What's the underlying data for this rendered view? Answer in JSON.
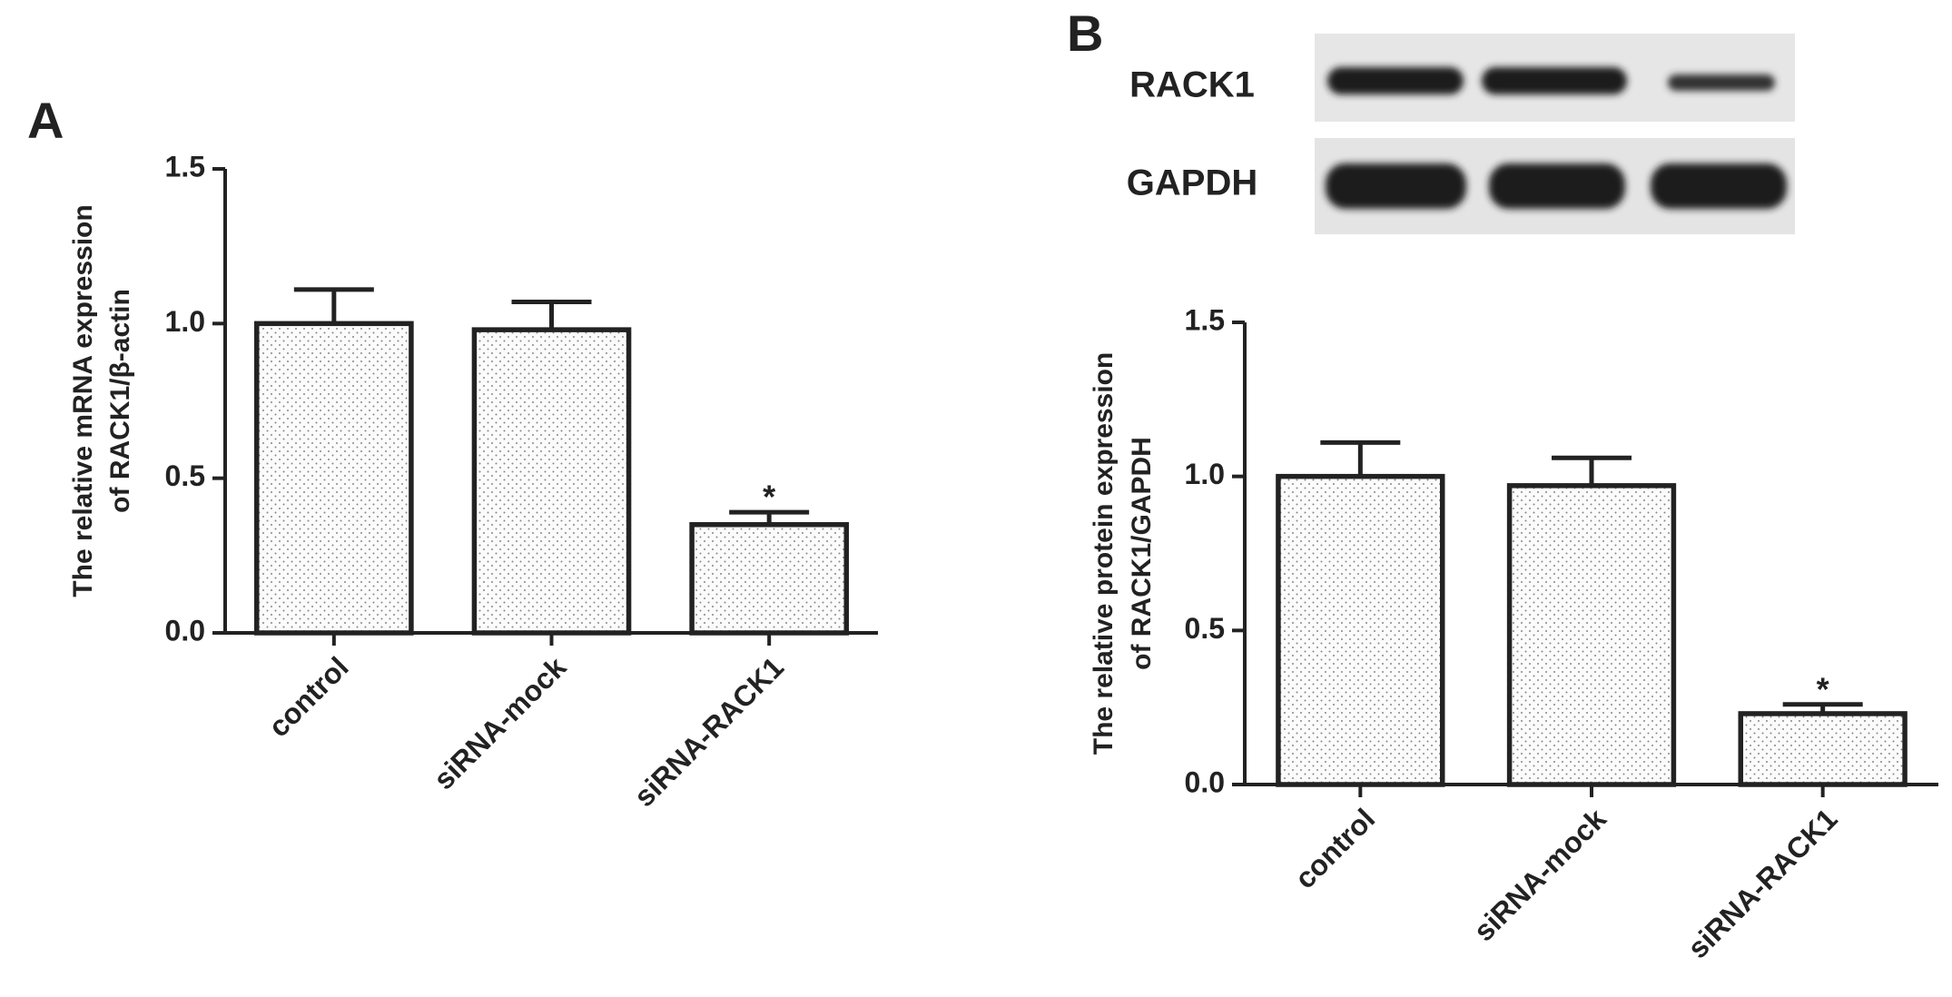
{
  "chart_data": [
    {
      "type": "bar",
      "panel_label": "A",
      "ylabel": [
        "The relative mRNA expression",
        "of RACK1/β-actin"
      ],
      "categories": [
        "control",
        "siRNA-mock",
        "siRNA-RACK1"
      ],
      "values": [
        1.0,
        0.98,
        0.35
      ],
      "errors": [
        0.11,
        0.09,
        0.04
      ],
      "ylim": [
        0,
        1.5
      ],
      "yticks": [
        {
          "value": 0,
          "label": "0.0"
        },
        {
          "value": 0.5,
          "label": "0.5"
        },
        {
          "value": 1,
          "label": "1.0"
        },
        {
          "value": 1.5,
          "label": "1.5"
        }
      ],
      "annotations": [
        {
          "text": "*",
          "category": "siRNA-RACK1"
        }
      ]
    },
    {
      "type": "bar",
      "panel_label": "B",
      "ylabel": [
        "The relative protein expression",
        "of RACK1/GAPDH"
      ],
      "categories": [
        "control",
        "siRNA-mock",
        "siRNA-RACK1"
      ],
      "values": [
        1.0,
        0.97,
        0.23
      ],
      "errors": [
        0.11,
        0.09,
        0.03
      ],
      "ylim": [
        0,
        1.5
      ],
      "yticks": [
        {
          "value": 0,
          "label": "0.0"
        },
        {
          "value": 0.5,
          "label": "0.5"
        },
        {
          "value": 1,
          "label": "1.0"
        },
        {
          "value": 1.5,
          "label": "1.5"
        }
      ],
      "annotations": [
        {
          "text": "*",
          "category": "siRNA-RACK1"
        }
      ]
    }
  ],
  "blot": {
    "labels": [
      "RACK1",
      "GAPDH"
    ]
  }
}
